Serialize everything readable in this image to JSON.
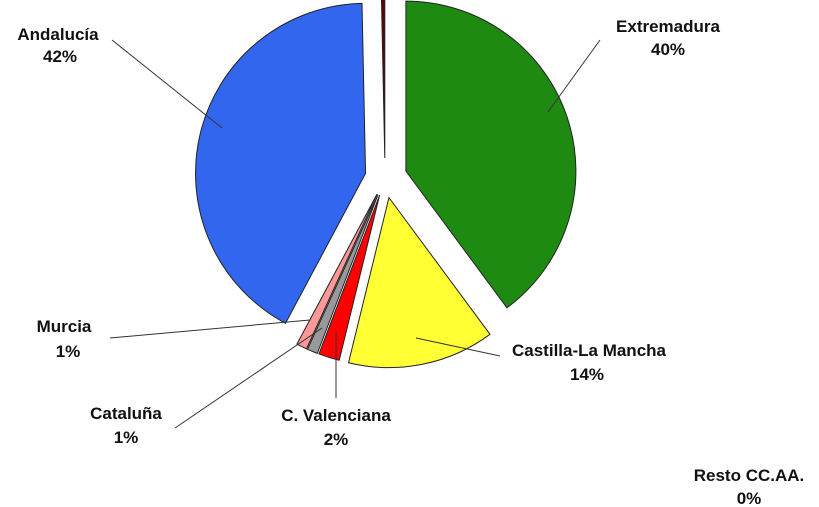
{
  "chart_data": {
    "type": "pie",
    "exploded": true,
    "slices": [
      {
        "name": "Extremadura",
        "value": 40,
        "label": "40%",
        "color": "#1f8a12"
      },
      {
        "name": "Castilla-La Mancha",
        "value": 14,
        "label": "14%",
        "color": "#ffff33"
      },
      {
        "name": "C. Valenciana",
        "value": 2,
        "label": "2%",
        "color": "#ff0000"
      },
      {
        "name": "Cataluña",
        "value": 1,
        "label": "1%",
        "color": "#999999"
      },
      {
        "name": "Murcia",
        "value": 1,
        "label": "1%",
        "color": "#ff9999"
      },
      {
        "name": "Andalucía",
        "value": 42,
        "label": "42%",
        "color": "#3366ee"
      },
      {
        "name": "Resto CC.AA.",
        "value": 0,
        "label": "0%",
        "color": "#660000"
      }
    ]
  }
}
